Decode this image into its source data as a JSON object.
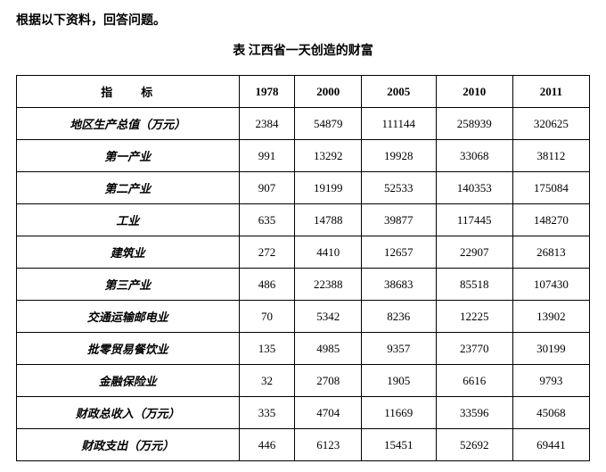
{
  "intro": "根据以下资料，回答问题。",
  "title": "表 江西省一天创造的财富",
  "header": {
    "indicator": "指　　标",
    "years": [
      "1978",
      "2000",
      "2005",
      "2010",
      "2011"
    ]
  },
  "rows": [
    {
      "label": "地区生产总值（万元）",
      "values": [
        "2384",
        "54879",
        "111144",
        "258939",
        "320625"
      ]
    },
    {
      "label": "第一产业",
      "values": [
        "991",
        "13292",
        "19928",
        "33068",
        "38112"
      ]
    },
    {
      "label": "第二产业",
      "values": [
        "907",
        "19199",
        "52533",
        "140353",
        "175084"
      ]
    },
    {
      "label": "工业",
      "values": [
        "635",
        "14788",
        "39877",
        "117445",
        "148270"
      ]
    },
    {
      "label": "建筑业",
      "values": [
        "272",
        "4410",
        "12657",
        "22907",
        "26813"
      ]
    },
    {
      "label": "第三产业",
      "values": [
        "486",
        "22388",
        "38683",
        "85518",
        "107430"
      ]
    },
    {
      "label": "交通运输邮电业",
      "values": [
        "70",
        "5342",
        "8236",
        "12225",
        "13902"
      ]
    },
    {
      "label": "批零贸易餐饮业",
      "values": [
        "135",
        "4985",
        "9357",
        "23770",
        "30199"
      ]
    },
    {
      "label": "金融保险业",
      "values": [
        "32",
        "2708",
        "1905",
        "6616",
        "9793"
      ]
    },
    {
      "label": "财政总收入（万元）",
      "values": [
        "335",
        "4704",
        "11669",
        "33596",
        "45068"
      ]
    },
    {
      "label": "财政支出（万元）",
      "values": [
        "446",
        "6123",
        "15451",
        "52692",
        "69441"
      ]
    }
  ]
}
